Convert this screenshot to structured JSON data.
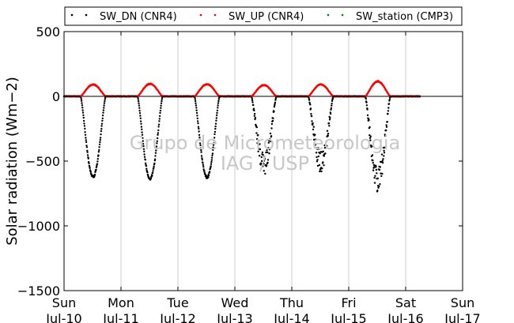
{
  "chart_data": {
    "type": "scatter",
    "xlabel": "",
    "ylabel": "Solar radiation (Wm−2)",
    "ylim": [
      -1500,
      500
    ],
    "yticks": [
      500,
      0,
      -500,
      -1000,
      -1500
    ],
    "ytick_labels": [
      "500",
      "0",
      "−500",
      "−1000",
      "−1500"
    ],
    "xlim": [
      "2016-07-10",
      "2016-07-17"
    ],
    "xticks": [
      {
        "day": "Sun",
        "date": "Jul-10"
      },
      {
        "day": "Mon",
        "date": "Jul-11"
      },
      {
        "day": "Tue",
        "date": "Jul-12"
      },
      {
        "day": "Wed",
        "date": "Jul-13"
      },
      {
        "day": "Thu",
        "date": "Jul-14"
      },
      {
        "day": "Fri",
        "date": "Jul-15"
      },
      {
        "day": "Sat",
        "date": "Jul-16"
      },
      {
        "day": "Sun",
        "date": "Jul-17"
      }
    ],
    "grid": "vertical",
    "legend_position": "top",
    "watermark": [
      "Grupo de Micrometeorologia",
      "IAG / USP"
    ],
    "series": [
      {
        "name": "SW_DN (CNR4)",
        "color": "#000000",
        "daily_min": [
          {
            "date": "2016-07-10",
            "min": -630
          },
          {
            "date": "2016-07-11",
            "min": -645
          },
          {
            "date": "2016-07-12",
            "min": -635
          },
          {
            "date": "2016-07-13",
            "min": -610
          },
          {
            "date": "2016-07-14",
            "min": -590
          },
          {
            "date": "2016-07-15",
            "min": -745
          }
        ],
        "daylight_hours": [
          "07:00",
          "17:30"
        ],
        "night_value": 0
      },
      {
        "name": "SW_UP (CNR4)",
        "color": "#ff0000",
        "daily_max": [
          {
            "date": "2016-07-10",
            "max": 95
          },
          {
            "date": "2016-07-11",
            "max": 100
          },
          {
            "date": "2016-07-12",
            "max": 97
          },
          {
            "date": "2016-07-13",
            "max": 90
          },
          {
            "date": "2016-07-14",
            "max": 95
          },
          {
            "date": "2016-07-15",
            "max": 120
          }
        ],
        "daylight_hours": [
          "07:00",
          "17:30"
        ],
        "night_value": 0
      },
      {
        "name": "SW_station (CMP3)",
        "color": "#008000",
        "values": []
      }
    ],
    "data_end": "2016-07-16 06:00"
  }
}
